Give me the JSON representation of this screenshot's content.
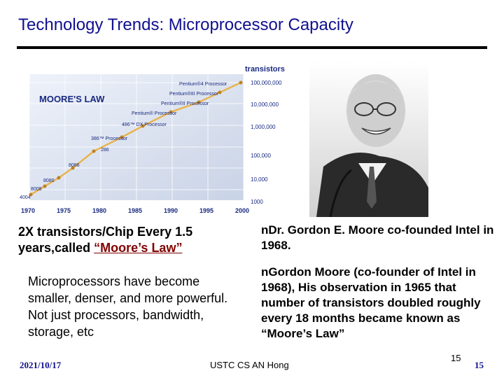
{
  "slide": {
    "title": "Technology Trends: Microprocessor Capacity",
    "page_number": "15",
    "slide_number": "15",
    "date": "2021/10/17",
    "footer": "USTC CS AN Hong"
  },
  "graph": {
    "heading": "MOORE'S LAW",
    "y_axis_title": "transistors",
    "y_ticks": [
      "100,000,000",
      "10,000,000",
      "1,000,000",
      "100,000",
      "10,000",
      "1000"
    ],
    "x_ticks": [
      "1970",
      "1975",
      "1980",
      "1985",
      "1990",
      "1995",
      "2000"
    ],
    "processors": [
      "4004",
      "8008",
      "8080",
      "8086",
      "286",
      "386™ Processor",
      "486™ DX Processor",
      "Pentium® Processor",
      "Pentium®II Processor",
      "Pentium®III Processor",
      "Pentium®4 Processor"
    ]
  },
  "text": {
    "p1_before": "2X transistors/Chip Every 1.5 years,called ",
    "p1_moore": "“Moore’s Law”",
    "p2": "Microprocessors have become smaller, denser, and more powerful. Not just processors, bandwidth, storage, etc",
    "bullet_mark": "n",
    "b1": "Dr. Gordon E. Moore co-founded Intel in 1968.",
    "b2": "Gordon Moore (co-founder of Intel in 1968), His observation in 1965 that number of transistors doubled roughly every 18 months became known as “Moore’s Law”"
  }
}
